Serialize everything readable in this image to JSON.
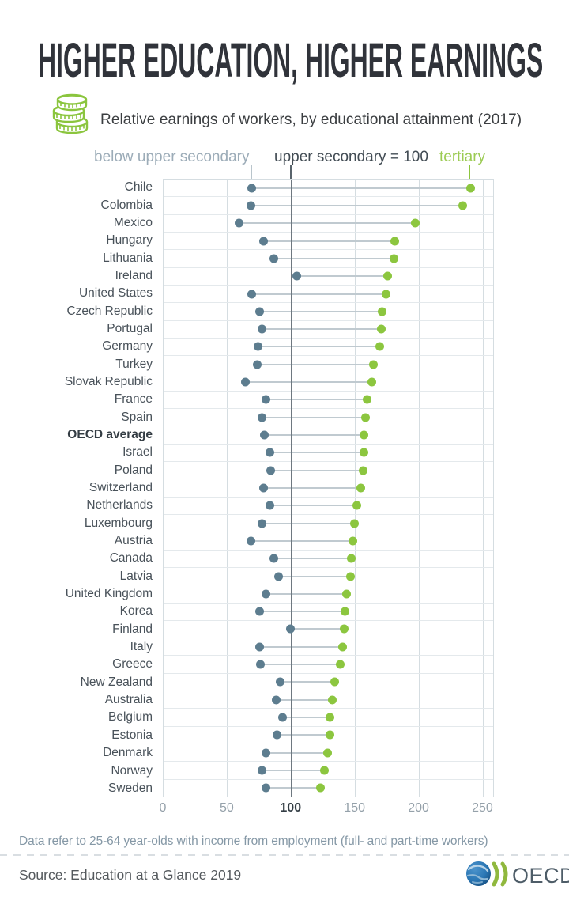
{
  "header": {
    "title": "HIGHER EDUCATION, HIGHER EARNINGS",
    "subtitle": "Relative earnings of workers, by educational attainment (2017)"
  },
  "icons": {
    "header_icon": "coins-icon",
    "logo_globe": "globe-icon",
    "logo_chevrons": "double-chevron-icon"
  },
  "legend": {
    "below": {
      "label": "below upper secondary",
      "color": "#9cacb8"
    },
    "baseline": {
      "label": "upper secondary = 100",
      "color": "#424c54"
    },
    "tertiary": {
      "label": "tertiary",
      "color": "#9ccb54"
    }
  },
  "chart_data": {
    "type": "scatter",
    "variant": "dumbbell-dot-plot",
    "title": "Relative earnings of workers, by educational attainment (2017)",
    "categories": [
      "Chile",
      "Colombia",
      "Mexico",
      "Hungary",
      "Lithuania",
      "Ireland",
      "United States",
      "Czech Republic",
      "Portugal",
      "Germany",
      "Turkey",
      "Slovak Republic",
      "France",
      "Spain",
      "OECD average",
      "Israel",
      "Poland",
      "Switzerland",
      "Netherlands",
      "Luxembourg",
      "Austria",
      "Canada",
      "Latvia",
      "United Kingdom",
      "Korea",
      "Finland",
      "Italy",
      "Greece",
      "New Zealand",
      "Australia",
      "Belgium",
      "Estonia",
      "Denmark",
      "Norway",
      "Sweden"
    ],
    "series": [
      {
        "name": "below upper secondary",
        "color": "#5d7d8f",
        "values": [
          69,
          68,
          59,
          78,
          86,
          104,
          69,
          75,
          77,
          74,
          73,
          64,
          80,
          77,
          79,
          83,
          84,
          78,
          83,
          77,
          68,
          86,
          90,
          80,
          75,
          99,
          75,
          76,
          91,
          88,
          93,
          89,
          80,
          77,
          80
        ]
      },
      {
        "name": "tertiary",
        "color": "#8cc63f",
        "values": [
          240,
          234,
          197,
          181,
          180,
          175,
          174,
          171,
          170,
          169,
          164,
          163,
          159,
          158,
          157,
          157,
          156,
          154,
          151,
          149,
          148,
          147,
          146,
          143,
          142,
          141,
          140,
          138,
          134,
          132,
          130,
          130,
          128,
          126,
          123
        ]
      }
    ],
    "baseline": {
      "label": "upper secondary = 100",
      "value": 100
    },
    "bold_category": "OECD average",
    "xlim": [
      0,
      259
    ],
    "x_ticks": [
      0,
      50,
      100,
      150,
      200,
      250
    ],
    "grid": "vertical",
    "legend_position": "top",
    "connector_color": "#c0cad0",
    "baseline_line_color": "#6e7880"
  },
  "footer": {
    "note": "Data refer to 25-64 year-olds with income from employment (full- and part-time workers)",
    "source": "Source: Education at a Glance 2019",
    "logo_text": "OECD"
  }
}
